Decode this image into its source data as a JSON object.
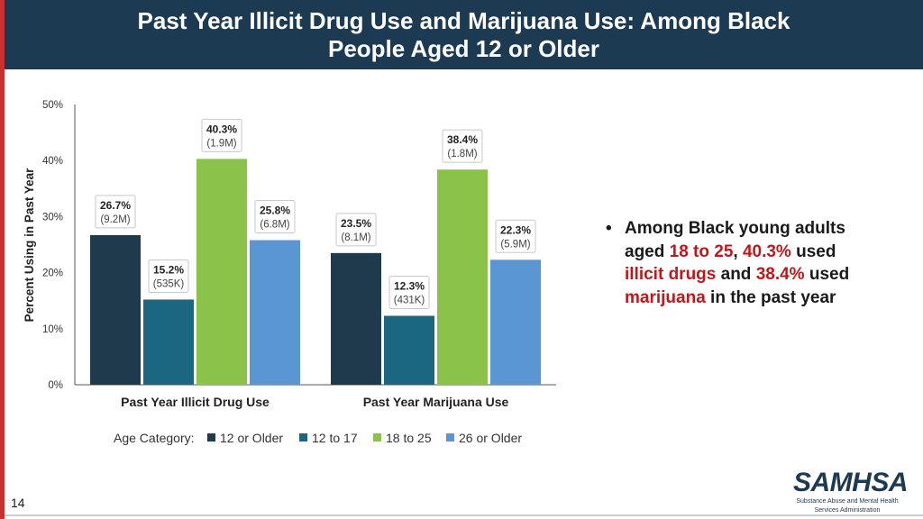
{
  "slide": {
    "title_line1": "Past Year Illicit Drug Use and Marijuana Use: Among Black",
    "title_line2": "People Aged 12 or Older",
    "page_number": "14",
    "colors": {
      "banner": "#1c3a51",
      "accent": "#c8312e",
      "highlight": "#c0171c"
    }
  },
  "bullet": {
    "bullet_char": "•",
    "p1": "Among Black young adults aged ",
    "h1": "18 to 25",
    "p2": ", ",
    "h2": "40.3%",
    "p3": " used ",
    "h3": "illicit drugs",
    "p4": " and ",
    "h4": "38.4%",
    "p5": " used ",
    "h5": "marijuana",
    "p6": " in the past year"
  },
  "logo": {
    "name": "SAMHSA",
    "subtitle_line1": "Substance Abuse and Mental Health",
    "subtitle_line2": "Services Administration"
  },
  "chart_data": {
    "type": "bar",
    "ylabel": "Percent Using in Past Year",
    "ylim": [
      0,
      50
    ],
    "yticks": [
      0,
      10,
      20,
      30,
      40,
      50
    ],
    "ytick_labels": [
      "0%",
      "10%",
      "20%",
      "30%",
      "40%",
      "50%"
    ],
    "categories": [
      "Past Year Illicit Drug Use",
      "Past Year Marijuana Use"
    ],
    "legend_title": "Age Category:",
    "legend_position": "bottom",
    "grid": false,
    "series": [
      {
        "name": "12 or Older",
        "color": "#1f3a4d",
        "values": [
          26.7,
          23.5
        ],
        "labels": [
          "26.7%",
          "23.5%"
        ],
        "counts": [
          "(9.2M)",
          "(8.1M)"
        ]
      },
      {
        "name": "12 to 17",
        "color": "#1b6680",
        "values": [
          15.2,
          12.3
        ],
        "labels": [
          "15.2%",
          "12.3%"
        ],
        "counts": [
          "(535K)",
          "(431K)"
        ]
      },
      {
        "name": "18 to 25",
        "color": "#8bc34a",
        "values": [
          40.3,
          38.4
        ],
        "labels": [
          "40.3%",
          "38.4%"
        ],
        "counts": [
          "(1.9M)",
          "(1.8M)"
        ]
      },
      {
        "name": "26 or Older",
        "color": "#5a96d1",
        "values": [
          25.8,
          22.3
        ],
        "labels": [
          "25.8%",
          "22.3%"
        ],
        "counts": [
          "(6.8M)",
          "(5.9M)"
        ]
      }
    ]
  }
}
